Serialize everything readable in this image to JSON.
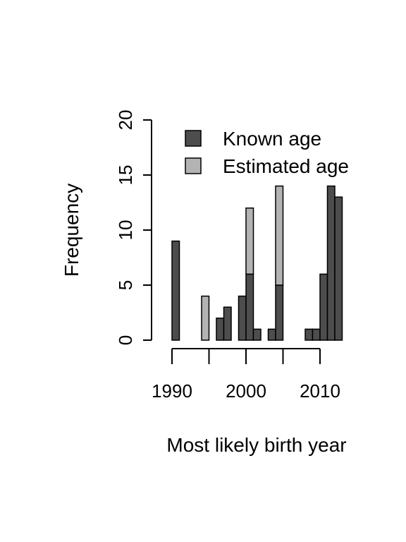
{
  "chart_data": {
    "type": "bar",
    "stacked": true,
    "xlabel": "Most likely birth year",
    "ylabel": "Frequency",
    "xlim": [
      1990,
      2013
    ],
    "ylim": [
      0,
      20
    ],
    "x_ticks": [
      1990,
      1995,
      2000,
      2005,
      2010
    ],
    "x_tick_labels": [
      "1990",
      "2000",
      "2010"
    ],
    "y_ticks": [
      "0",
      "5",
      "10",
      "15",
      "20"
    ],
    "legend_position": "top-right",
    "x": [
      1990,
      1991,
      1992,
      1993,
      1994,
      1995,
      1996,
      1997,
      1998,
      1999,
      2000,
      2001,
      2002,
      2003,
      2004,
      2005,
      2006,
      2007,
      2008,
      2009,
      2010,
      2011,
      2012
    ],
    "series": [
      {
        "name": "Known age",
        "color": "#4d4d4d",
        "values": [
          9,
          0,
          0,
          0,
          0,
          0,
          2,
          3,
          0,
          4,
          6,
          1,
          0,
          1,
          5,
          0,
          0,
          0,
          1,
          1,
          6,
          14,
          13
        ]
      },
      {
        "name": "Estimated age",
        "color": "#b3b3b3",
        "values": [
          0,
          0,
          0,
          0,
          4,
          0,
          0,
          0,
          0,
          0,
          6,
          0,
          0,
          0,
          9,
          0,
          0,
          0,
          0,
          0,
          0,
          0,
          0
        ]
      }
    ]
  }
}
